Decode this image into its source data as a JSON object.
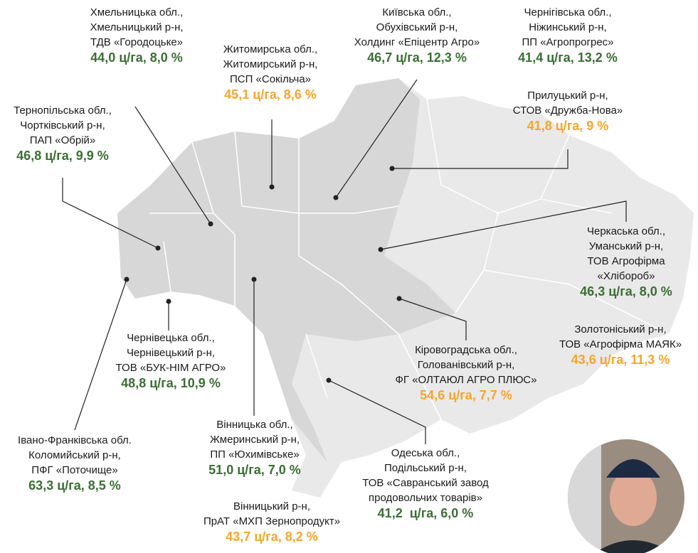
{
  "callouts": [
    {
      "lines": [
        "Хмельницька обл.,",
        "Хмельницький р-н,",
        "ТДВ «Городоцьке»"
      ],
      "value": "44,0 ц/га, 8,0 %",
      "color": "#3b6e34"
    },
    {
      "lines": [
        "Житомирська обл.,",
        "Житомирський р-н,",
        "ПСП «Сокільча»"
      ],
      "value": "45,1 ц/га, 8,6 %",
      "color": "#f4a62a"
    },
    {
      "lines": [
        "Київська обл.,",
        "Обухівський р-н,",
        "Холдинг «Епіцентр Агро»"
      ],
      "value": "46,7 ц/га, 12,3 %",
      "color": "#3b6e34"
    },
    {
      "lines": [
        "Чернігівська обл.,",
        "Ніжинський р-н,",
        "ПП «Агропрогрес»"
      ],
      "value": "41,4 ц/га, 13,2 %",
      "color": "#3b6e34"
    },
    {
      "lines": [
        "Прилуцький р-н,",
        "СТОВ «Дружба-Нова»"
      ],
      "value": "41,8 ц/га, 9 %",
      "color": "#f4a62a"
    },
    {
      "lines": [
        "Тернопільська обл.,",
        "Чортківський р-н,",
        "ПАП «Обрій»"
      ],
      "value": "46,8 ц/га, 9,9 %",
      "color": "#3b6e34"
    },
    {
      "lines": [
        "Черкаська обл.,",
        "Уманський р-н,",
        "ТОВ Агрофірма",
        "«Хлібороб»"
      ],
      "value": "46,3 ц/га, 8,0 %",
      "color": "#3b6e34"
    },
    {
      "lines": [
        "Золотоніський р-н,",
        "ТОВ «Агрофірма МАЯК»"
      ],
      "value": "43,6 ц/га, 11,3 %",
      "color": "#f4a62a"
    },
    {
      "lines": [
        "Кіровоградська обл.,",
        "Голованівський р-н,",
        "ФГ «ОЛТАЮЛ АГРО ПЛЮС»"
      ],
      "value": "54,6 ц/га, 7,7 %",
      "color": "#f4a62a"
    },
    {
      "lines": [
        "Чернівецька обл.,",
        "Чернівецький р-н,",
        "ТОВ «БУК-НІМ АГРО»"
      ],
      "value": "48,8 ц/га, 10,9 %",
      "color": "#3b6e34"
    },
    {
      "lines": [
        "Івано-Франківська обл.",
        "Коломийський р-н,",
        "ПФГ «Поточище»"
      ],
      "value": "63,3 ц/га, 8,5 %",
      "color": "#3b6e34"
    },
    {
      "lines": [
        "Вінницька обл.,",
        "Жмеринський р-н,",
        "ПП «Юхимівське»"
      ],
      "value": "51,0 ц/га, 7,0 %",
      "color": "#3b6e34"
    },
    {
      "lines": [
        "Вінницький р-н,",
        "ПрАТ «МХП Зернопродукт»"
      ],
      "value": "43,7 ц/га, 8,2 %",
      "color": "#f4a62a"
    },
    {
      "lines": [
        "Одеська обл.,",
        "Подільський р-н,",
        "ТОВ «Савранський завод",
        "продовольчих товарів»"
      ],
      "value": "41,2  ц/га, 6,0 %",
      "color": "#3b6e34"
    }
  ]
}
